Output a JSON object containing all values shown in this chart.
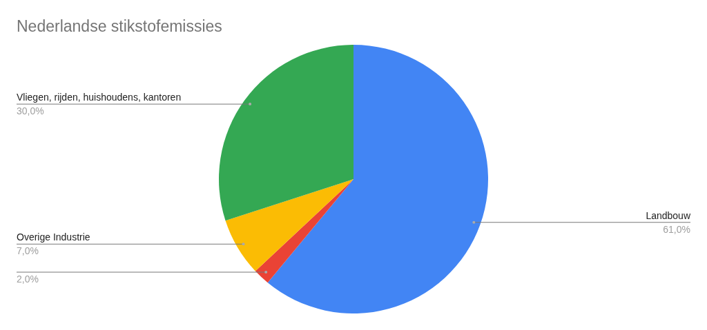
{
  "chart_data": {
    "type": "pie",
    "title": "Nederlandse stikstofemissies",
    "categories": [
      "Landbouw",
      null,
      "Overige Industrie",
      "Vliegen, rijden, huishoudens, kantoren"
    ],
    "values": [
      61,
      2,
      7,
      30
    ],
    "colors": [
      "#4285f4",
      "#ea4335",
      "#fbbc04",
      "#34a853"
    ],
    "value_labels": [
      "61,0%",
      "2,0%",
      "7,0%",
      "30,0%"
    ]
  }
}
